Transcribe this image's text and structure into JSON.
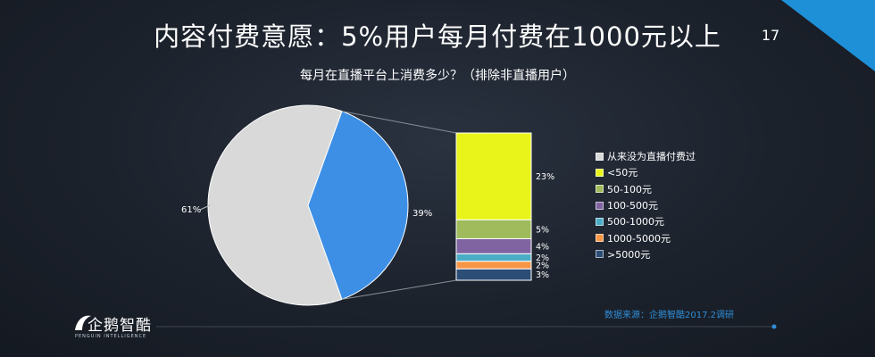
{
  "slide": {
    "title": "内容付费意愿：5%用户每月付费在1000元以上",
    "page_number": "17",
    "subtitle": "每月在直播平台上消费多少？（排除非直播用户）",
    "source": "数据来源：企鹅智酷2017.2调研",
    "logo_text": "企鹅智酷",
    "logo_subtext": "PENGUIN INTELLIGENCE",
    "accent_color": "#1e90d8"
  },
  "chart_data": {
    "type": "pie",
    "pie": {
      "slices": [
        {
          "label": "61%",
          "value": 61,
          "color": "#d9d9d9"
        },
        {
          "label": "39%",
          "value": 39,
          "color": "#3d8fe6"
        }
      ]
    },
    "breakdown": {
      "type": "stacked-bar",
      "parent_slice": "39%",
      "segments": [
        {
          "label": "23%",
          "value": 23,
          "color": "#e9f51a"
        },
        {
          "label": "5%",
          "value": 5,
          "color": "#9fbb5b"
        },
        {
          "label": "4%",
          "value": 4,
          "color": "#8064a2"
        },
        {
          "label": "2%",
          "value": 2,
          "color": "#4bacc6"
        },
        {
          "label": "2%",
          "value": 2,
          "color": "#f79646"
        },
        {
          "label": "3%",
          "value": 3,
          "color": "#2c4d75"
        }
      ]
    },
    "legend": {
      "placement": "right",
      "entries": [
        {
          "label": "从来没为直播付费过",
          "color": "#d9d9d9"
        },
        {
          "label": "<50元",
          "color": "#e9f51a"
        },
        {
          "label": "50-100元",
          "color": "#9fbb5b"
        },
        {
          "label": "100-500元",
          "color": "#8064a2"
        },
        {
          "label": "500-1000元",
          "color": "#4bacc6"
        },
        {
          "label": "1000-5000元",
          "color": "#f79646"
        },
        {
          "label": ">5000元",
          "color": "#2c4d75"
        }
      ]
    }
  }
}
